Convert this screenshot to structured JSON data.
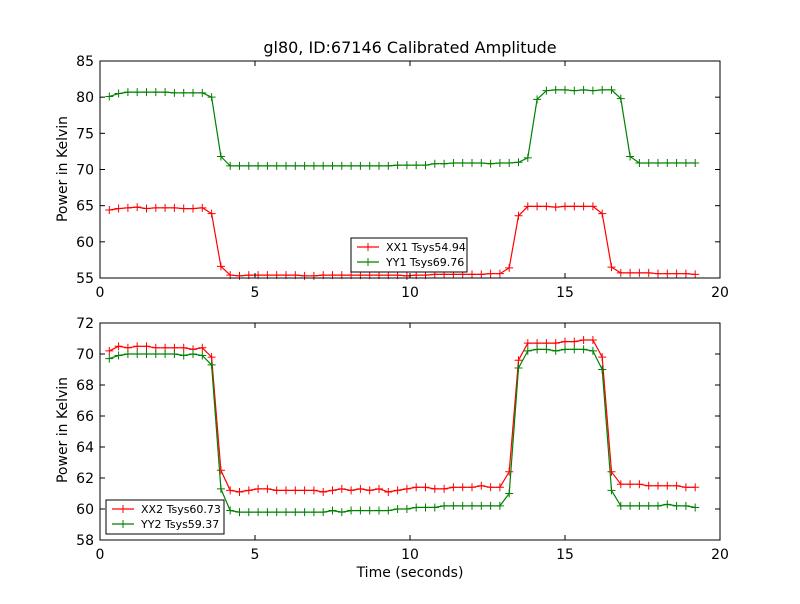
{
  "chart_data": [
    {
      "type": "line",
      "title": "gl80, ID:67146 Calibrated Amplitude",
      "xlabel": "",
      "ylabel": "Power in Kelvin",
      "xlim": [
        0,
        20
      ],
      "ylim": [
        55,
        85
      ],
      "xticks": [
        0,
        5,
        10,
        15,
        20
      ],
      "yticks": [
        55,
        60,
        65,
        70,
        75,
        80,
        85
      ],
      "grid": false,
      "legend_position": "lower-center",
      "x": [
        0.3,
        0.6,
        0.9,
        1.2,
        1.5,
        1.8,
        2.1,
        2.4,
        2.7,
        3.0,
        3.3,
        3.6,
        3.9,
        4.2,
        4.5,
        4.8,
        5.1,
        5.4,
        5.7,
        6.0,
        6.3,
        6.6,
        6.9,
        7.2,
        7.5,
        7.8,
        8.1,
        8.4,
        8.7,
        9.0,
        9.3,
        9.6,
        9.9,
        10.2,
        10.5,
        10.8,
        11.1,
        11.4,
        11.7,
        12.0,
        12.3,
        12.6,
        12.9,
        13.2,
        13.5,
        13.8,
        14.1,
        14.4,
        14.7,
        15.0,
        15.3,
        15.6,
        15.9,
        16.2,
        16.5,
        16.8,
        17.1,
        17.4,
        17.7,
        18.0,
        18.3,
        18.6,
        18.9,
        19.2
      ],
      "series": [
        {
          "name": "XX1 Tsys54.94",
          "color": "#ff0000",
          "values": [
            64.4,
            64.6,
            64.7,
            64.8,
            64.6,
            64.7,
            64.7,
            64.7,
            64.6,
            64.6,
            64.7,
            63.9,
            56.6,
            55.4,
            55.3,
            55.4,
            55.4,
            55.4,
            55.4,
            55.4,
            55.4,
            55.3,
            55.3,
            55.4,
            55.4,
            55.4,
            55.4,
            55.4,
            55.4,
            55.4,
            55.4,
            55.4,
            55.3,
            55.4,
            55.4,
            55.5,
            55.5,
            55.5,
            55.5,
            55.5,
            55.5,
            55.6,
            55.6,
            56.4,
            63.6,
            64.9,
            64.9,
            64.9,
            64.8,
            64.9,
            64.9,
            64.9,
            64.9,
            63.9,
            56.5,
            55.7,
            55.7,
            55.7,
            55.7,
            55.6,
            55.6,
            55.6,
            55.6,
            55.5
          ]
        },
        {
          "name": "YY1 Tsys69.76",
          "color": "#008000",
          "values": [
            80.1,
            80.5,
            80.7,
            80.7,
            80.7,
            80.7,
            80.7,
            80.6,
            80.6,
            80.6,
            80.6,
            80.0,
            71.8,
            70.5,
            70.5,
            70.5,
            70.5,
            70.5,
            70.5,
            70.5,
            70.5,
            70.5,
            70.5,
            70.5,
            70.5,
            70.5,
            70.5,
            70.5,
            70.5,
            70.5,
            70.5,
            70.6,
            70.6,
            70.6,
            70.6,
            70.8,
            70.8,
            70.9,
            70.9,
            70.9,
            70.9,
            70.8,
            70.9,
            70.9,
            71.0,
            71.6,
            79.7,
            80.9,
            81.0,
            81.0,
            80.9,
            81.0,
            80.9,
            81.0,
            81.0,
            79.8,
            71.8,
            70.9,
            70.9,
            70.9,
            70.9,
            70.9,
            70.9,
            70.9
          ]
        }
      ]
    },
    {
      "type": "line",
      "title": "",
      "xlabel": "Time (seconds)",
      "ylabel": "Power in Kelvin",
      "xlim": [
        0,
        20
      ],
      "ylim": [
        58,
        72
      ],
      "xticks": [
        0,
        5,
        10,
        15,
        20
      ],
      "yticks": [
        58,
        60,
        62,
        64,
        66,
        68,
        70,
        72
      ],
      "grid": false,
      "legend_position": "lower-left",
      "x": [
        0.3,
        0.6,
        0.9,
        1.2,
        1.5,
        1.8,
        2.1,
        2.4,
        2.7,
        3.0,
        3.3,
        3.6,
        3.9,
        4.2,
        4.5,
        4.8,
        5.1,
        5.4,
        5.7,
        6.0,
        6.3,
        6.6,
        6.9,
        7.2,
        7.5,
        7.8,
        8.1,
        8.4,
        8.7,
        9.0,
        9.3,
        9.6,
        9.9,
        10.2,
        10.5,
        10.8,
        11.1,
        11.4,
        11.7,
        12.0,
        12.3,
        12.6,
        12.9,
        13.2,
        13.5,
        13.8,
        14.1,
        14.4,
        14.7,
        15.0,
        15.3,
        15.6,
        15.9,
        16.2,
        16.5,
        16.8,
        17.1,
        17.4,
        17.7,
        18.0,
        18.3,
        18.6,
        18.9,
        19.2
      ],
      "series": [
        {
          "name": "XX2 Tsys60.73",
          "color": "#ff0000",
          "values": [
            70.2,
            70.5,
            70.4,
            70.5,
            70.5,
            70.4,
            70.4,
            70.4,
            70.4,
            70.3,
            70.4,
            69.8,
            62.5,
            61.2,
            61.1,
            61.2,
            61.3,
            61.3,
            61.2,
            61.2,
            61.2,
            61.2,
            61.2,
            61.1,
            61.2,
            61.3,
            61.2,
            61.3,
            61.2,
            61.3,
            61.1,
            61.2,
            61.3,
            61.4,
            61.4,
            61.3,
            61.3,
            61.4,
            61.4,
            61.4,
            61.5,
            61.4,
            61.4,
            62.4,
            69.6,
            70.7,
            70.7,
            70.7,
            70.7,
            70.8,
            70.8,
            70.9,
            70.9,
            69.8,
            62.4,
            61.6,
            61.6,
            61.6,
            61.5,
            61.5,
            61.5,
            61.5,
            61.4,
            61.4
          ]
        },
        {
          "name": "YY2 Tsys59.37",
          "color": "#008000",
          "values": [
            69.7,
            69.9,
            70.0,
            70.0,
            70.0,
            70.0,
            70.0,
            70.0,
            69.9,
            70.0,
            69.9,
            69.3,
            61.3,
            59.9,
            59.8,
            59.8,
            59.8,
            59.8,
            59.8,
            59.8,
            59.8,
            59.8,
            59.8,
            59.8,
            59.9,
            59.8,
            59.9,
            59.9,
            59.9,
            59.9,
            59.9,
            60.0,
            60.0,
            60.1,
            60.1,
            60.1,
            60.2,
            60.2,
            60.2,
            60.2,
            60.2,
            60.2,
            60.2,
            61.0,
            69.1,
            70.2,
            70.3,
            70.3,
            70.2,
            70.3,
            70.3,
            70.3,
            70.2,
            69.0,
            61.2,
            60.2,
            60.2,
            60.2,
            60.2,
            60.2,
            60.3,
            60.2,
            60.2,
            60.1
          ]
        }
      ]
    }
  ]
}
